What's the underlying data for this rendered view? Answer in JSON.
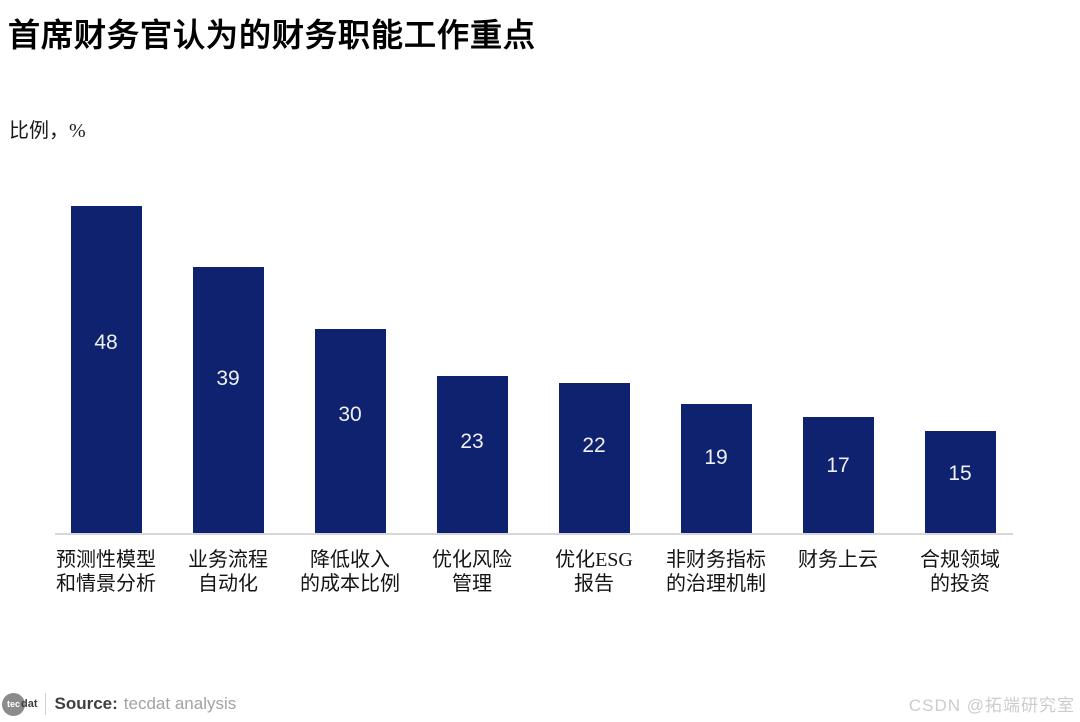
{
  "page": {
    "watermark": "CSDN @拓端研究室"
  },
  "chart_data": {
    "type": "bar",
    "title": "首席财务官认为的财务职能工作重点",
    "ylabel": "比例，%",
    "xlabel": "",
    "categories": [
      "预测性模型\n和情景分析",
      "业务流程\n自动化",
      "降低收入\n的成本比例",
      "优化风险\n管理",
      "优化ESG\n报告",
      "非财务指标\n的治理机制",
      "财务上云",
      "合规领域\n的投资"
    ],
    "values": [
      48,
      39,
      30,
      23,
      22,
      19,
      17,
      15
    ],
    "ylim": [
      0,
      50
    ],
    "grid": false,
    "legend": false,
    "bar_color": "#0e2270",
    "value_label_color": "#f0f0f0",
    "axis_line_color": "#d6d6d6"
  },
  "footer": {
    "logo_circle_text": "tec",
    "logo_suffix_text": "dat",
    "source_label": "Source:",
    "source_value": "tecdat analysis"
  }
}
